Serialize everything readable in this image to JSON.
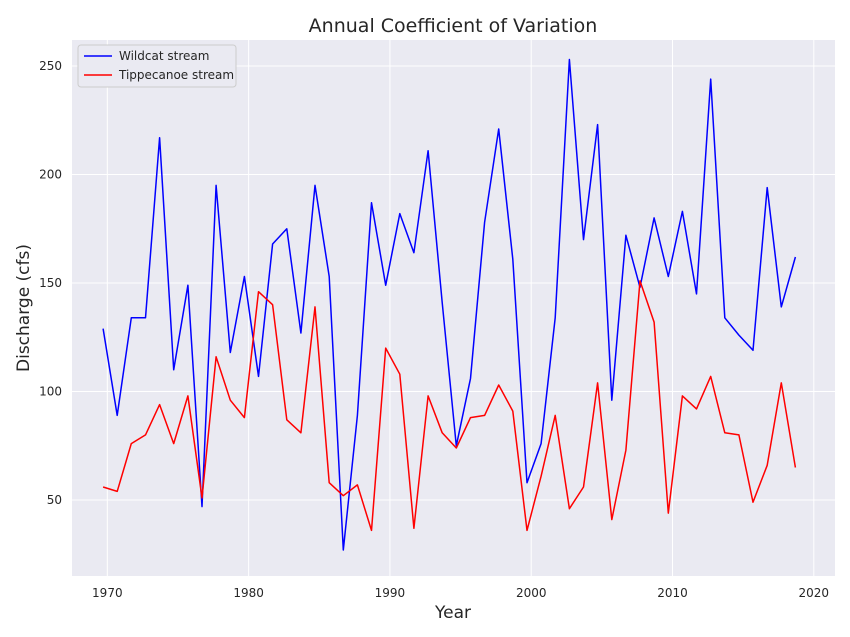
{
  "chart_data": {
    "type": "line",
    "title": "Annual Coefficient of Variation",
    "xlabel": "Year",
    "ylabel": "Discharge (cfs)",
    "xlim": [
      1967.5,
      2021.5
    ],
    "ylim": [
      15,
      262
    ],
    "xticks": [
      1970,
      1980,
      1990,
      2000,
      2010,
      2020
    ],
    "yticks": [
      50,
      100,
      150,
      200,
      250
    ],
    "grid": true,
    "legend_position": "top-left",
    "background_color": "#eaeaf2",
    "x": [
      1969.7,
      1970.7,
      1971.7,
      1972.7,
      1973.7,
      1974.7,
      1975.7,
      1976.7,
      1977.7,
      1978.7,
      1979.7,
      1980.7,
      1981.7,
      1982.7,
      1983.7,
      1984.7,
      1985.7,
      1986.7,
      1987.7,
      1988.7,
      1989.7,
      1990.7,
      1991.7,
      1992.7,
      1993.7,
      1994.7,
      1995.7,
      1996.7,
      1997.7,
      1998.7,
      1999.7,
      2000.7,
      2001.7,
      2002.7,
      2003.7,
      2004.7,
      2005.7,
      2006.7,
      2007.7,
      2008.7,
      2009.7,
      2010.7,
      2011.7,
      2012.7,
      2013.7,
      2014.7,
      2015.7,
      2016.7,
      2017.7,
      2018.7
    ],
    "series": [
      {
        "name": "Wildcat stream",
        "color": "#0000ff",
        "values": [
          129,
          89,
          134,
          134,
          217,
          110,
          149,
          47,
          195,
          118,
          153,
          107,
          168,
          175,
          127,
          195,
          153,
          27,
          89,
          187,
          149,
          182,
          164,
          211,
          141,
          75,
          106,
          178,
          221,
          161,
          58,
          76,
          134,
          253,
          170,
          223,
          96,
          172,
          148,
          180,
          153,
          183,
          145,
          244,
          134,
          126,
          119,
          194,
          139,
          162
        ]
      },
      {
        "name": "Tippecanoe stream",
        "color": "#ff0000",
        "values": [
          56,
          54,
          76,
          80,
          94,
          76,
          98,
          51,
          116,
          96,
          88,
          146,
          140,
          87,
          81,
          139,
          58,
          52,
          57,
          36,
          120,
          108,
          37,
          98,
          81,
          74,
          88,
          89,
          103,
          91,
          36,
          61,
          89,
          46,
          56,
          104,
          41,
          73,
          151,
          132,
          44,
          98,
          92,
          107,
          81,
          80,
          49,
          66,
          104,
          65
        ]
      }
    ]
  }
}
